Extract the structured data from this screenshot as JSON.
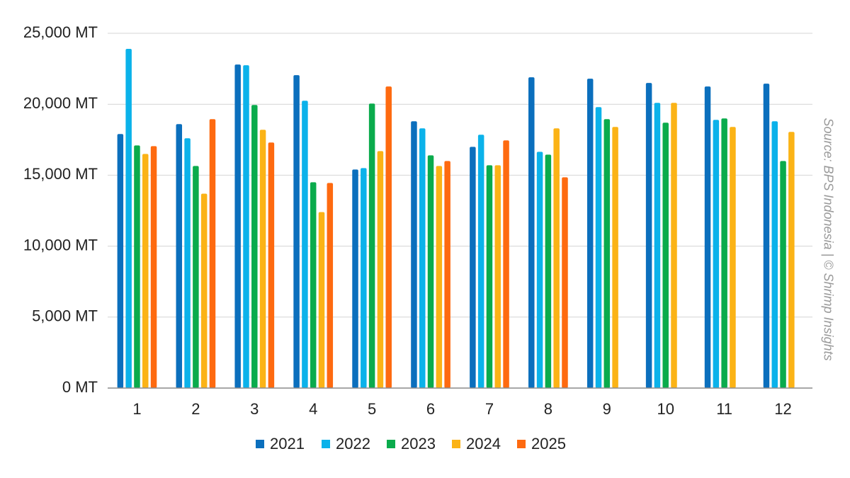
{
  "chart_data": {
    "type": "bar",
    "title": "",
    "xlabel": "",
    "ylabel": "",
    "categories": [
      "1",
      "2",
      "3",
      "4",
      "5",
      "6",
      "7",
      "8",
      "9",
      "10",
      "11",
      "12"
    ],
    "ylim": [
      0,
      25000
    ],
    "yticks": [
      0,
      5000,
      10000,
      15000,
      20000,
      25000
    ],
    "ytick_labels": [
      "0 MT",
      "5,000 MT",
      "10,000 MT",
      "15,000 MT",
      "20,000 MT",
      "25,000 MT"
    ],
    "grid": true,
    "legend_position": "bottom",
    "series": [
      {
        "name": "2021",
        "color": "#0b6fbd",
        "values": [
          17900,
          18600,
          22800,
          22050,
          15400,
          18800,
          17000,
          21900,
          21800,
          21500,
          21250,
          21450
        ]
      },
      {
        "name": "2022",
        "color": "#0bb2ea",
        "values": [
          23900,
          17600,
          22750,
          20250,
          15500,
          18300,
          17850,
          16650,
          19800,
          20100,
          18900,
          18800
        ]
      },
      {
        "name": "2023",
        "color": "#0aab4c",
        "values": [
          17100,
          15650,
          19950,
          14500,
          20050,
          16400,
          15700,
          16450,
          18950,
          18700,
          19000,
          16000
        ]
      },
      {
        "name": "2024",
        "color": "#fbb316",
        "values": [
          16500,
          13700,
          18200,
          12400,
          16700,
          15650,
          15700,
          18300,
          18400,
          20100,
          18400,
          18050
        ]
      },
      {
        "name": "2025",
        "color": "#fe6a10",
        "values": [
          17050,
          18950,
          17300,
          14450,
          21250,
          16000,
          17450,
          14850,
          null,
          null,
          null,
          null
        ]
      }
    ]
  },
  "source": "Source: BPS Indonesia | © Shrimp Insights"
}
